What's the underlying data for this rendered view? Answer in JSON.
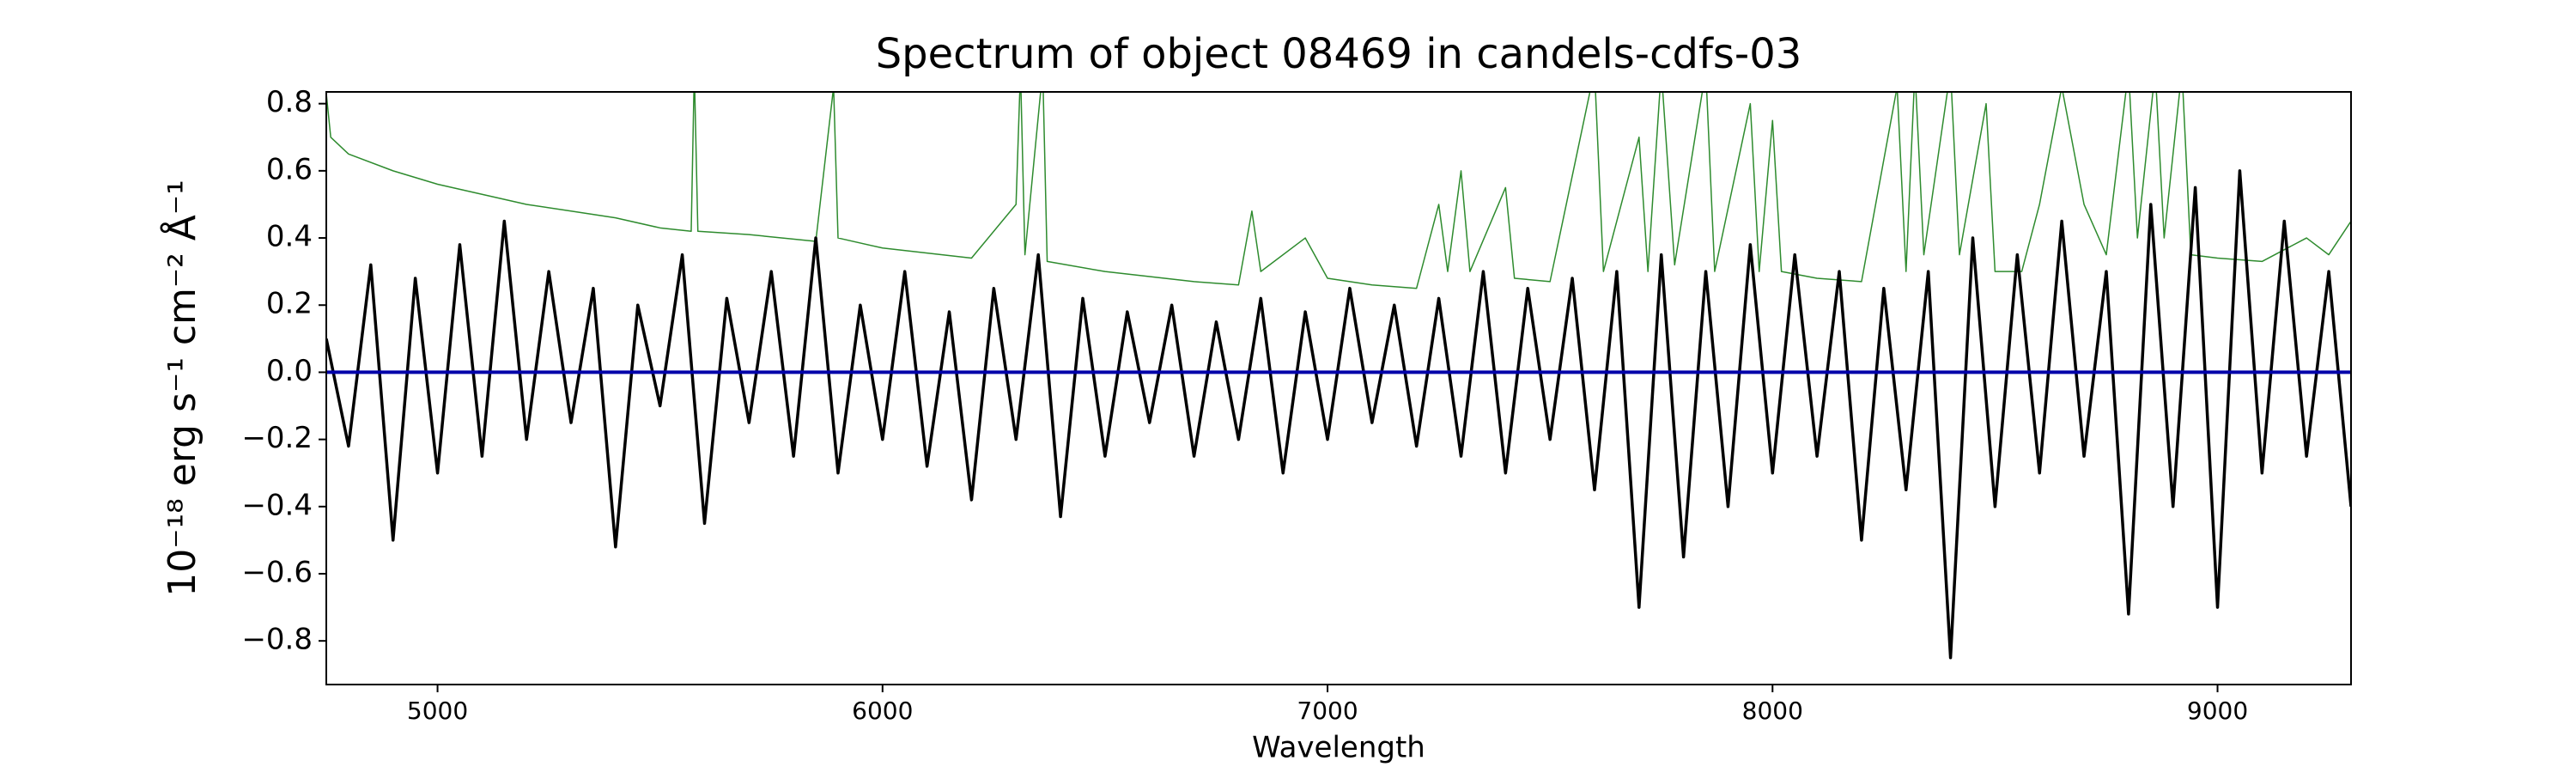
{
  "chart_data": {
    "type": "line",
    "title": "Spectrum of object 08469 in candels-cdfs-03",
    "xlabel": "Wavelength",
    "ylabel": "10⁻¹⁸ erg s⁻¹ cm⁻² Å⁻¹",
    "xlim": [
      4750,
      9300
    ],
    "ylim": [
      -0.93,
      0.835
    ],
    "xticks": [
      5000,
      6000,
      7000,
      8000,
      9000
    ],
    "yticks": [
      {
        "value": -0.8,
        "label": "−0.8"
      },
      {
        "value": -0.6,
        "label": "−0.6"
      },
      {
        "value": -0.4,
        "label": "−0.4"
      },
      {
        "value": -0.2,
        "label": "−0.2"
      },
      {
        "value": 0,
        "label": "0.0"
      },
      0.2,
      0.4,
      0.6,
      0.8
    ],
    "series": [
      {
        "color": "#2e8b2e",
        "width": 1.5,
        "x": [
          4750,
          4760,
          4800,
          4900,
          5000,
          5100,
          5200,
          5300,
          5400,
          5500,
          5570,
          5577,
          5585,
          5700,
          5850,
          5890,
          5900,
          6000,
          6200,
          6300,
          6310,
          6320,
          6360,
          6370,
          6500,
          6700,
          6800,
          6830,
          6850,
          6950,
          7000,
          7100,
          7200,
          7250,
          7270,
          7300,
          7320,
          7400,
          7420,
          7500,
          7600,
          7620,
          7700,
          7720,
          7750,
          7780,
          7850,
          7870,
          7950,
          7970,
          8000,
          8020,
          8100,
          8200,
          8280,
          8300,
          8320,
          8340,
          8400,
          8420,
          8480,
          8500,
          8560,
          8600,
          8650,
          8700,
          8750,
          8800,
          8820,
          8860,
          8880,
          8920,
          8940,
          9000,
          9100,
          9200,
          9250,
          9300
        ],
        "values": [
          0.83,
          0.7,
          0.65,
          0.6,
          0.56,
          0.53,
          0.5,
          0.48,
          0.46,
          0.43,
          0.42,
          0.9,
          0.42,
          0.41,
          0.39,
          0.85,
          0.4,
          0.37,
          0.34,
          0.5,
          0.9,
          0.35,
          0.9,
          0.33,
          0.3,
          0.27,
          0.26,
          0.48,
          0.3,
          0.4,
          0.28,
          0.26,
          0.25,
          0.5,
          0.3,
          0.6,
          0.3,
          0.55,
          0.28,
          0.27,
          0.9,
          0.3,
          0.7,
          0.3,
          0.9,
          0.32,
          0.9,
          0.3,
          0.8,
          0.3,
          0.75,
          0.3,
          0.28,
          0.27,
          0.85,
          0.3,
          0.9,
          0.35,
          0.9,
          0.35,
          0.8,
          0.3,
          0.3,
          0.5,
          0.85,
          0.5,
          0.35,
          0.9,
          0.4,
          0.9,
          0.4,
          0.9,
          0.35,
          0.34,
          0.33,
          0.4,
          0.35,
          0.45
        ]
      },
      {
        "color": "#000000",
        "width": 3.5,
        "x": [
          4750,
          4800,
          4850,
          4900,
          4950,
          5000,
          5050,
          5100,
          5150,
          5200,
          5250,
          5300,
          5350,
          5400,
          5450,
          5500,
          5550,
          5600,
          5650,
          5700,
          5750,
          5800,
          5850,
          5900,
          5950,
          6000,
          6050,
          6100,
          6150,
          6200,
          6250,
          6300,
          6350,
          6400,
          6450,
          6500,
          6550,
          6600,
          6650,
          6700,
          6750,
          6800,
          6850,
          6900,
          6950,
          7000,
          7050,
          7100,
          7150,
          7200,
          7250,
          7300,
          7350,
          7400,
          7450,
          7500,
          7550,
          7600,
          7650,
          7700,
          7750,
          7800,
          7850,
          7900,
          7950,
          8000,
          8050,
          8100,
          8150,
          8200,
          8250,
          8300,
          8350,
          8400,
          8450,
          8500,
          8550,
          8600,
          8650,
          8700,
          8750,
          8800,
          8850,
          8900,
          8950,
          9000,
          9050,
          9100,
          9150,
          9200,
          9250,
          9300
        ],
        "values": [
          0.1,
          -0.22,
          0.32,
          -0.5,
          0.28,
          -0.3,
          0.38,
          -0.25,
          0.45,
          -0.2,
          0.3,
          -0.15,
          0.25,
          -0.52,
          0.2,
          -0.1,
          0.35,
          -0.45,
          0.22,
          -0.15,
          0.3,
          -0.25,
          0.4,
          -0.3,
          0.2,
          -0.2,
          0.3,
          -0.28,
          0.18,
          -0.38,
          0.25,
          -0.2,
          0.35,
          -0.43,
          0.22,
          -0.25,
          0.18,
          -0.15,
          0.2,
          -0.25,
          0.15,
          -0.2,
          0.22,
          -0.3,
          0.18,
          -0.2,
          0.25,
          -0.15,
          0.2,
          -0.22,
          0.22,
          -0.25,
          0.3,
          -0.3,
          0.25,
          -0.2,
          0.28,
          -0.35,
          0.3,
          -0.7,
          0.35,
          -0.55,
          0.3,
          -0.4,
          0.38,
          -0.3,
          0.35,
          -0.25,
          0.3,
          -0.5,
          0.25,
          -0.35,
          0.3,
          -0.85,
          0.4,
          -0.4,
          0.35,
          -0.3,
          0.45,
          -0.25,
          0.3,
          -0.72,
          0.5,
          -0.4,
          0.55,
          -0.7,
          0.6,
          -0.3,
          0.45,
          -0.25,
          0.3,
          -0.4
        ]
      },
      {
        "color": "#0000aa",
        "width": 4,
        "x": [
          4750,
          9300
        ],
        "values": [
          0,
          0
        ]
      }
    ]
  }
}
